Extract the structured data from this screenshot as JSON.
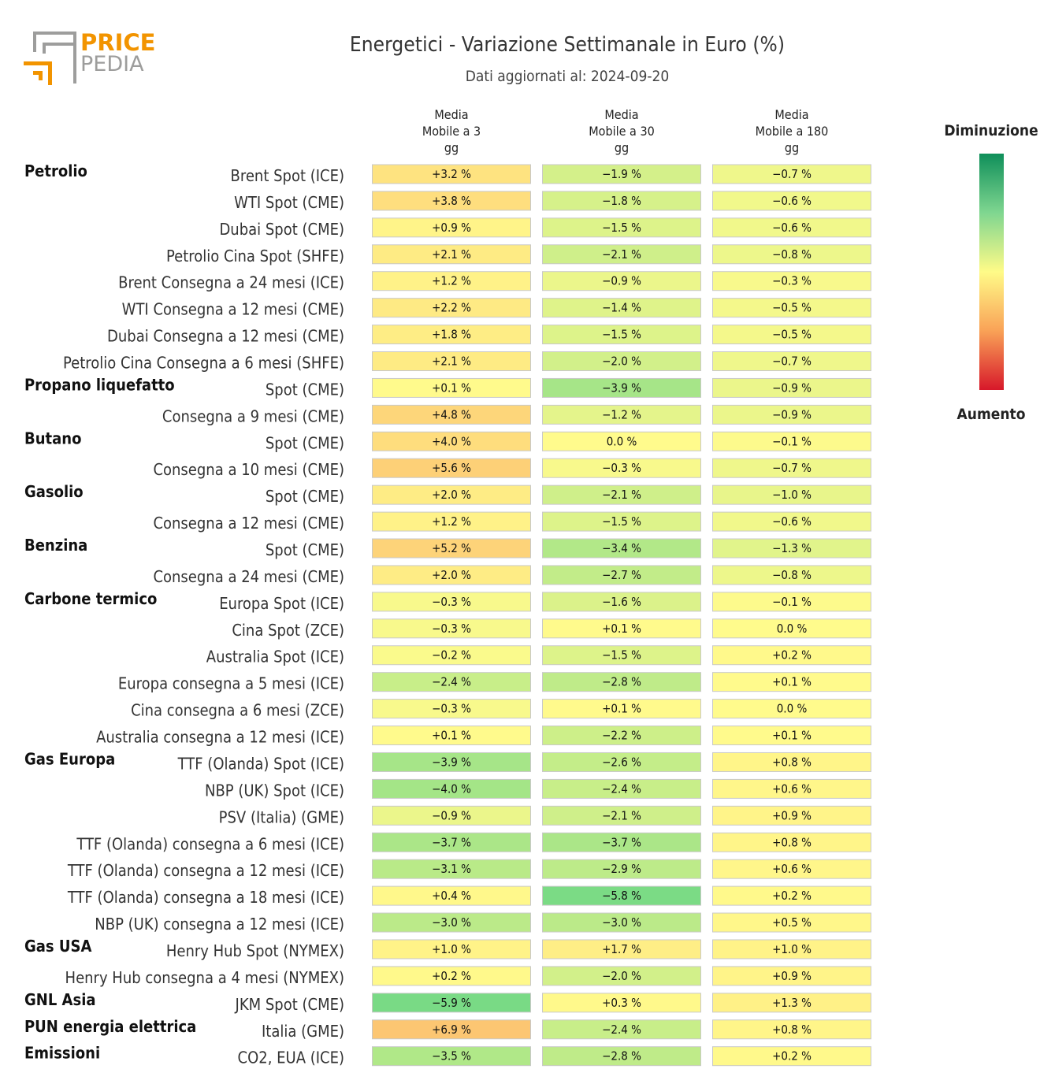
{
  "logo": {
    "line1": "PRICE",
    "line2": "PEDIA"
  },
  "title": "Energetici - Variazione Settimanale in Euro (%)",
  "subtitle": "Dati aggiornati al: 2024-09-20",
  "colors": {
    "orange": "#f29400",
    "gray": "#9d9d9c",
    "green": "#0a9a5a",
    "red": "#d7182a"
  },
  "chart_data": {
    "type": "table",
    "unit": "%",
    "columns": [
      [
        "Media",
        "Mobile a 3",
        "gg"
      ],
      [
        "Media",
        "Mobile a 30",
        "gg"
      ],
      [
        "Media",
        "Mobile a 180",
        "gg"
      ]
    ],
    "legend": {
      "top": "Diminuzione",
      "bottom": "Aumento"
    },
    "groups": [
      {
        "name": "Petrolio",
        "rows": [
          {
            "label": "Brent Spot (ICE)",
            "values": [
              "+3.2 %",
              "−1.9 %",
              "−0.7 %"
            ]
          },
          {
            "label": "WTI Spot (CME)",
            "values": [
              "+3.8 %",
              "−1.8 %",
              "−0.6 %"
            ]
          },
          {
            "label": "Dubai Spot (CME)",
            "values": [
              "+0.9 %",
              "−1.5 %",
              "−0.6 %"
            ]
          },
          {
            "label": "Petrolio Cina Spot (SHFE)",
            "values": [
              "+2.1 %",
              "−2.1 %",
              "−0.8 %"
            ]
          },
          {
            "label": "Brent Consegna a 24 mesi (ICE)",
            "values": [
              "+1.2 %",
              "−0.9 %",
              "−0.3 %"
            ]
          },
          {
            "label": "WTI Consegna a 12 mesi (CME)",
            "values": [
              "+2.2 %",
              "−1.4 %",
              "−0.5 %"
            ]
          },
          {
            "label": "Dubai Consegna a 12 mesi (CME)",
            "values": [
              "+1.8 %",
              "−1.5 %",
              "−0.5 %"
            ]
          },
          {
            "label": "Petrolio Cina Consegna a 6 mesi (SHFE)",
            "values": [
              "+2.1 %",
              "−2.0 %",
              "−0.7 %"
            ]
          }
        ]
      },
      {
        "name": "Propano liquefatto",
        "rows": [
          {
            "label": "Spot (CME)",
            "values": [
              "+0.1 %",
              "−3.9 %",
              "−0.9 %"
            ]
          },
          {
            "label": "Consegna a 9 mesi (CME)",
            "values": [
              "+4.8 %",
              "−1.2 %",
              "−0.9 %"
            ]
          }
        ]
      },
      {
        "name": "Butano",
        "rows": [
          {
            "label": "Spot (CME)",
            "values": [
              "+4.0 %",
              "0.0 %",
              "−0.1 %"
            ]
          },
          {
            "label": "Consegna a 10 mesi (CME)",
            "values": [
              "+5.6 %",
              "−0.3 %",
              "−0.7 %"
            ]
          }
        ]
      },
      {
        "name": "Gasolio",
        "rows": [
          {
            "label": "Spot (CME)",
            "values": [
              "+2.0 %",
              "−2.1 %",
              "−1.0 %"
            ]
          },
          {
            "label": "Consegna a 12 mesi (CME)",
            "values": [
              "+1.2 %",
              "−1.5 %",
              "−0.6 %"
            ]
          }
        ]
      },
      {
        "name": "Benzina",
        "rows": [
          {
            "label": "Spot (CME)",
            "values": [
              "+5.2 %",
              "−3.4 %",
              "−1.3 %"
            ]
          },
          {
            "label": "Consegna a 24 mesi (CME)",
            "values": [
              "+2.0 %",
              "−2.7 %",
              "−0.8 %"
            ]
          }
        ]
      },
      {
        "name": "Carbone termico",
        "rows": [
          {
            "label": "Europa Spot (ICE)",
            "values": [
              "−0.3 %",
              "−1.6 %",
              "−0.1 %"
            ]
          },
          {
            "label": "Cina Spot (ZCE)",
            "values": [
              "−0.3 %",
              "+0.1 %",
              "0.0 %"
            ]
          },
          {
            "label": "Australia Spot (ICE)",
            "values": [
              "−0.2 %",
              "−1.5 %",
              "+0.2 %"
            ]
          },
          {
            "label": "Europa consegna a 5 mesi (ICE)",
            "values": [
              "−2.4 %",
              "−2.8 %",
              "+0.1 %"
            ]
          },
          {
            "label": "Cina consegna a 6 mesi (ZCE)",
            "values": [
              "−0.3 %",
              "+0.1 %",
              "0.0 %"
            ]
          },
          {
            "label": "Australia consegna a 12 mesi (ICE)",
            "values": [
              "+0.1 %",
              "−2.2 %",
              "+0.1 %"
            ]
          }
        ]
      },
      {
        "name": "Gas Europa",
        "rows": [
          {
            "label": "TTF (Olanda) Spot (ICE)",
            "values": [
              "−3.9 %",
              "−2.6 %",
              "+0.8 %"
            ]
          },
          {
            "label": "NBP (UK) Spot (ICE)",
            "values": [
              "−4.0 %",
              "−2.4 %",
              "+0.6 %"
            ]
          },
          {
            "label": "PSV (Italia) (GME)",
            "values": [
              "−0.9 %",
              "−2.1 %",
              "+0.9 %"
            ]
          },
          {
            "label": "TTF (Olanda) consegna a 6 mesi (ICE)",
            "values": [
              "−3.7 %",
              "−3.7 %",
              "+0.8 %"
            ]
          },
          {
            "label": "TTF (Olanda) consegna a 12 mesi (ICE)",
            "values": [
              "−3.1 %",
              "−2.9 %",
              "+0.6 %"
            ]
          },
          {
            "label": "TTF (Olanda) consegna a 18 mesi (ICE)",
            "values": [
              "+0.4 %",
              "−5.8 %",
              "+0.2 %"
            ]
          },
          {
            "label": "NBP (UK) consegna a 12 mesi (ICE)",
            "values": [
              "−3.0 %",
              "−3.0 %",
              "+0.5 %"
            ]
          }
        ]
      },
      {
        "name": "Gas USA",
        "rows": [
          {
            "label": "Henry Hub Spot (NYMEX)",
            "values": [
              "+1.0 %",
              "+1.7 %",
              "+1.0 %"
            ]
          },
          {
            "label": "Henry Hub consegna a 4 mesi (NYMEX)",
            "values": [
              "+0.2 %",
              "−2.0 %",
              "+0.9 %"
            ]
          }
        ]
      },
      {
        "name": "GNL Asia",
        "rows": [
          {
            "label": "JKM Spot (CME)",
            "values": [
              "−5.9 %",
              "+0.3 %",
              "+1.3 %"
            ]
          }
        ]
      },
      {
        "name": "PUN energia elettrica",
        "rows": [
          {
            "label": "Italia (GME)",
            "values": [
              "+6.9 %",
              "−2.4 %",
              "+0.8 %"
            ]
          }
        ]
      },
      {
        "name": "Emissioni",
        "rows": [
          {
            "label": "CO2, EUA (ICE)",
            "values": [
              "−3.5 %",
              "−2.8 %",
              "+0.2 %"
            ]
          }
        ]
      }
    ]
  }
}
